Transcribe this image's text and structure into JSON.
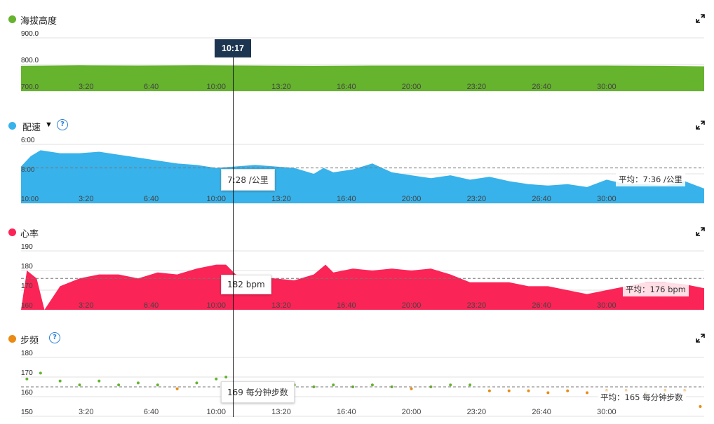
{
  "cursor": {
    "time": "10:17"
  },
  "x_ticks": [
    "3:20",
    "6:40",
    "10:00",
    "13:20",
    "16:40",
    "20:00",
    "23:20",
    "26:40",
    "30:00"
  ],
  "colors": {
    "elevation": "#66b32e",
    "pace": "#38b2ea",
    "heart_rate": "#fb2456",
    "cadence_dot_green": "#66b32e",
    "cadence_dot_orange": "#e98b14"
  },
  "icons": {
    "expand": "expand-arrows-icon",
    "help": "question-circle-icon",
    "dropdown": "triangle-down-icon"
  },
  "panels": {
    "elevation": {
      "title": "海拔高度",
      "y_ticks": [
        "900.0",
        "800.0",
        "700.0"
      ]
    },
    "pace": {
      "title": "配速",
      "dropdown": "▼",
      "help": "?",
      "y_ticks": [
        "6:00",
        "8:00",
        "10:00"
      ],
      "tooltip": "7:28 /公里",
      "average": "平均：7:36 /公里"
    },
    "heart_rate": {
      "title": "心率",
      "y_ticks": [
        "190",
        "180",
        "170",
        "160"
      ],
      "tooltip": "182 bpm",
      "average": "平均：176 bpm"
    },
    "cadence": {
      "title": "步频",
      "help": "?",
      "y_ticks": [
        "180",
        "170",
        "160",
        "150"
      ],
      "tooltip": "169 每分钟步数",
      "average": "平均：165 每分钟步数"
    }
  },
  "chart_data": [
    {
      "type": "area",
      "title": "海拔高度",
      "x_unit": "min",
      "x": [
        0,
        3,
        6,
        9,
        12,
        15,
        18,
        21,
        24,
        27,
        30,
        33,
        35
      ],
      "y": [
        795,
        797,
        796,
        797,
        796,
        795,
        796,
        796,
        796,
        796,
        796,
        795,
        793
      ],
      "ylim": [
        700,
        900
      ],
      "yticks": [
        900,
        800,
        700
      ],
      "xticks": [
        "3:20",
        "6:40",
        "10:00",
        "13:20",
        "16:40",
        "20:00",
        "23:20",
        "26:40",
        "30:00"
      ]
    },
    {
      "type": "area",
      "title": "配速",
      "x_unit": "min",
      "y_unit": "min/km (axis inverted)",
      "x": [
        0,
        0.5,
        1,
        2,
        3,
        4,
        5,
        6,
        7,
        8,
        9,
        10,
        11,
        12,
        13,
        14,
        15,
        15.5,
        16,
        17,
        18,
        18.5,
        19,
        20,
        21,
        22,
        23,
        24,
        25,
        26,
        27,
        28,
        29,
        30,
        31,
        32,
        33,
        34,
        35
      ],
      "y": [
        7.5,
        6.8,
        6.4,
        6.6,
        6.6,
        6.5,
        6.7,
        6.9,
        7.1,
        7.3,
        7.4,
        7.6,
        7.5,
        7.4,
        7.5,
        7.6,
        8.0,
        7.6,
        7.9,
        7.7,
        7.3,
        7.6,
        7.9,
        8.1,
        8.3,
        8.1,
        8.4,
        8.2,
        8.5,
        8.7,
        8.8,
        8.7,
        8.9,
        8.4,
        8.7,
        8.7,
        8.8,
        8.5,
        9.0
      ],
      "ylim": [
        6,
        10
      ],
      "yticks": [
        "6:00",
        "8:00",
        "10:00"
      ],
      "average": "7:36",
      "cursor_value": "7:28"
    },
    {
      "type": "area",
      "title": "心率",
      "x_unit": "min",
      "y_unit": "bpm",
      "x": [
        0,
        0.3,
        0.8,
        1.2,
        2,
        3,
        4,
        5,
        6,
        7,
        8,
        9,
        10,
        10.5,
        11,
        12,
        13,
        14,
        15,
        15.6,
        16,
        17,
        18,
        19,
        20,
        21,
        22,
        23,
        24,
        25,
        26,
        27,
        28,
        29,
        30,
        31,
        32,
        33,
        34,
        35
      ],
      "y": [
        160,
        180,
        176,
        160,
        172,
        176,
        178,
        178,
        176,
        179,
        178,
        181,
        183,
        183,
        178,
        176,
        176,
        175,
        178,
        183,
        179,
        181,
        180,
        181,
        180,
        181,
        178,
        174,
        174,
        174,
        172,
        172,
        170,
        168,
        170,
        172,
        174,
        174,
        173,
        171
      ],
      "ylim": [
        160,
        190
      ],
      "yticks": [
        190,
        180,
        170,
        160
      ],
      "average": 176,
      "cursor_value": 182
    },
    {
      "type": "scatter",
      "title": "步频",
      "x_unit": "min",
      "y_unit": "spm",
      "x": [
        0.3,
        1,
        2,
        3,
        4,
        5,
        6,
        7,
        8,
        9,
        10,
        10.5,
        11,
        12,
        13,
        14,
        15,
        16,
        17,
        18,
        19,
        20,
        21,
        22,
        23,
        24,
        25,
        26,
        27,
        28,
        29,
        30,
        31,
        32,
        33,
        34,
        34.8
      ],
      "y": [
        169,
        172,
        168,
        166,
        168,
        166,
        167,
        166,
        164,
        167,
        169,
        170,
        166,
        166,
        167,
        166,
        165,
        166,
        165,
        166,
        165,
        164,
        165,
        166,
        166,
        163,
        163,
        163,
        162,
        163,
        162,
        163,
        163,
        162,
        163,
        163,
        155
      ],
      "ylim": [
        150,
        180
      ],
      "yticks": [
        180,
        170,
        160,
        150
      ],
      "average": 165,
      "cursor_value": 169
    }
  ]
}
